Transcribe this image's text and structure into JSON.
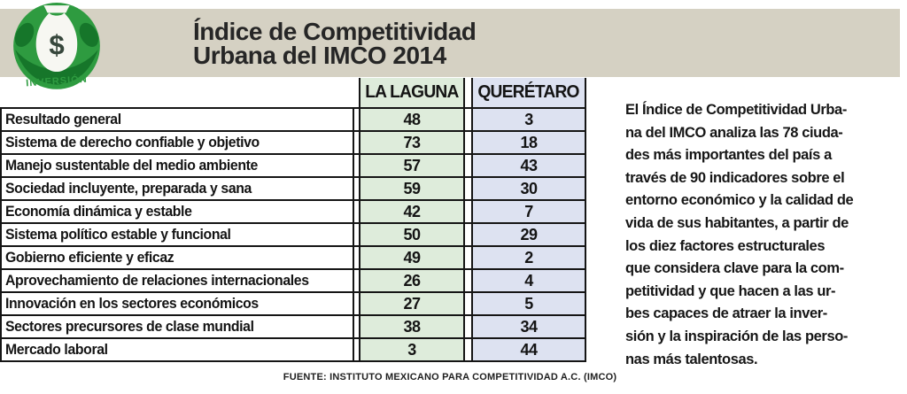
{
  "header": {
    "title_line1": "Índice de Competitividad",
    "title_line2": "Urbana del IMCO 2014",
    "logo": {
      "icon": "money-bag-icon",
      "symbol": "$",
      "label": "INVERSIÓN"
    }
  },
  "table": {
    "columns": [
      "LA LAGUNA",
      "QUERÉTARO"
    ],
    "rows": [
      {
        "label": "Resultado general",
        "la_laguna": "48",
        "queretaro": "3"
      },
      {
        "label": "Sistema de derecho confiable y objetivo",
        "la_laguna": "73",
        "queretaro": "18"
      },
      {
        "label": "Manejo sustentable del medio ambiente",
        "la_laguna": "57",
        "queretaro": "43"
      },
      {
        "label": "Sociedad incluyente, preparada y sana",
        "la_laguna": "59",
        "queretaro": "30"
      },
      {
        "label": "Economía dinámica y estable",
        "la_laguna": "42",
        "queretaro": "7"
      },
      {
        "label": "Sistema político estable y funcional",
        "la_laguna": "50",
        "queretaro": "29"
      },
      {
        "label": "Gobierno eficiente y eficaz",
        "la_laguna": "49",
        "queretaro": "2"
      },
      {
        "label": "Aprovechamiento de relaciones internacionales",
        "la_laguna": "26",
        "queretaro": "4"
      },
      {
        "label": "Innovación en los sectores económicos",
        "la_laguna": "27",
        "queretaro": "5"
      },
      {
        "label": "Sectores precursores de clase mundial",
        "la_laguna": "38",
        "queretaro": "34"
      },
      {
        "label": "Mercado laboral",
        "la_laguna": "3",
        "queretaro": "44"
      }
    ]
  },
  "description": {
    "lines": [
      "El Índice de Competitividad Urba-",
      "na del IMCO analiza las 78 ciuda-",
      "des más importantes del país a",
      "través de 90 indicadores sobre el",
      "entorno económico y la calidad de",
      "vida de sus habitantes, a partir de",
      "los diez factores estructurales",
      "que considera clave para la com-",
      "petitividad y que hacen a las ur-",
      "bes capaces de atraer la inver-",
      "sión y la inspiración de las perso-",
      "nas más talentosas."
    ]
  },
  "footer": {
    "source": "FUENTE: INSTITUTO MEXICANO PARA COMPETITIVIDAD A.C. (IMCO)"
  },
  "colors": {
    "band_beige": "#d5d1c3",
    "cell_green": "#deecdb",
    "cell_blue": "#dde2f1",
    "border_black": "#151515",
    "icon_green": "#2e9b40",
    "icon_dark_green": "#16762a"
  },
  "chart_data": {
    "type": "table",
    "title": "Índice de Competitividad Urbana del IMCO 2014",
    "categories": [
      "Resultado general",
      "Sistema de derecho confiable y objetivo",
      "Manejo sustentable del medio ambiente",
      "Sociedad incluyente, preparada y sana",
      "Economía dinámica y estable",
      "Sistema político estable y funcional",
      "Gobierno eficiente y eficaz",
      "Aprovechamiento de relaciones internacionales",
      "Innovación en los sectores económicos",
      "Sectores precursores de clase mundial",
      "Mercado laboral"
    ],
    "series": [
      {
        "name": "LA LAGUNA",
        "values": [
          48,
          73,
          57,
          59,
          42,
          50,
          49,
          26,
          27,
          38,
          3
        ]
      },
      {
        "name": "QUERÉTARO",
        "values": [
          3,
          18,
          43,
          30,
          7,
          29,
          2,
          4,
          5,
          34,
          44
        ]
      }
    ],
    "source": "FUENTE: INSTITUTO MEXICANO PARA COMPETITIVIDAD A.C. (IMCO)"
  }
}
